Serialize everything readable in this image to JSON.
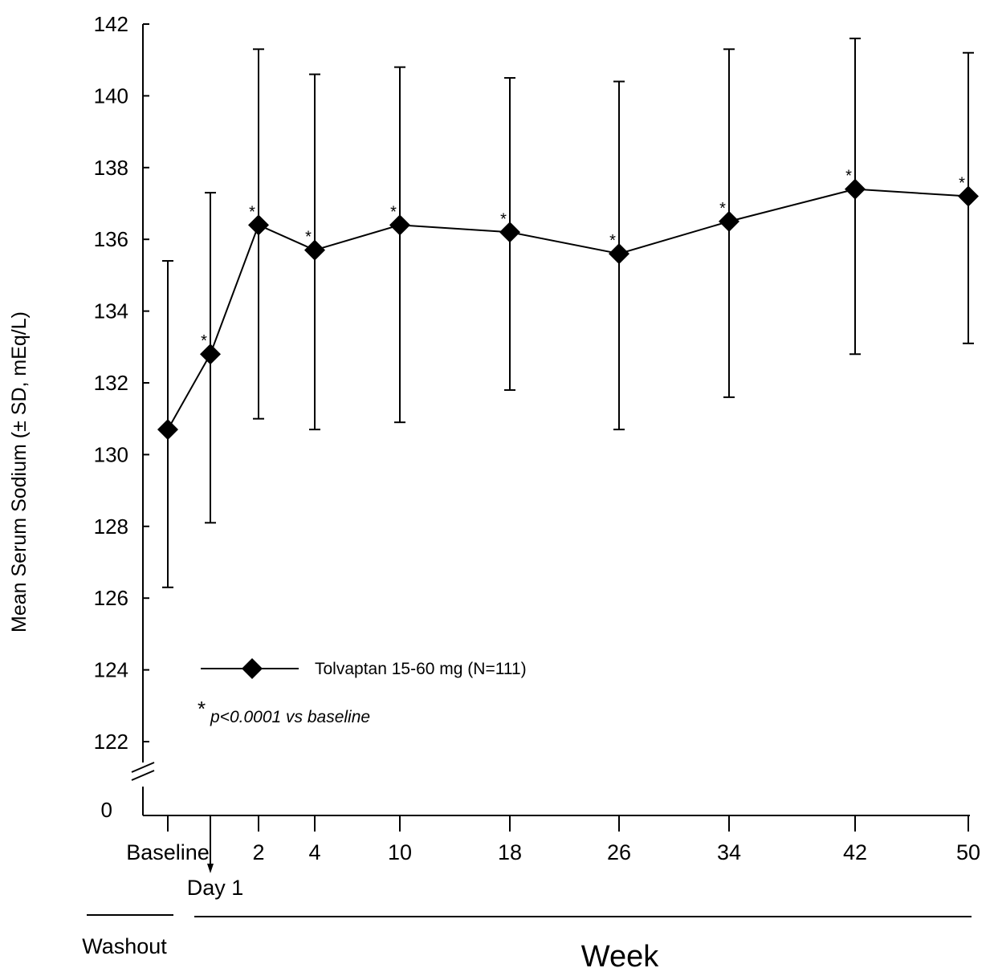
{
  "chart_data": {
    "type": "line",
    "title": "",
    "ylabel": "Mean Serum Sodium (± SD, mEq/L)",
    "xlabel": "Week",
    "period_labels": {
      "washout": "Washout",
      "week": "Week"
    },
    "ylim": [
      122,
      142
    ],
    "y_break_label": "0",
    "y_ticks": [
      "122",
      "124",
      "126",
      "128",
      "130",
      "132",
      "134",
      "136",
      "138",
      "140",
      "142"
    ],
    "categories": [
      "Baseline",
      "Day 1",
      "2",
      "4",
      "10",
      "18",
      "26",
      "34",
      "42",
      "50"
    ],
    "x_tick_labels": [
      "Baseline",
      "2",
      "4",
      "10",
      "18",
      "26",
      "34",
      "42",
      "50"
    ],
    "day1_label": "Day 1",
    "series": [
      {
        "name": "Tolvaptan 15-60 mg (N=111)",
        "values": [
          130.7,
          132.8,
          136.4,
          135.7,
          136.4,
          136.2,
          135.6,
          136.5,
          137.4,
          137.2
        ],
        "sd_upper": [
          135.4,
          137.3,
          141.3,
          140.6,
          140.8,
          140.5,
          140.4,
          141.3,
          141.6,
          141.2
        ],
        "sd_lower": [
          126.3,
          128.1,
          131.0,
          130.7,
          130.9,
          131.8,
          130.7,
          131.6,
          132.8,
          133.1
        ],
        "significant": [
          false,
          true,
          true,
          true,
          true,
          true,
          true,
          true,
          true,
          true
        ],
        "color": "#000000",
        "marker": "diamond"
      }
    ],
    "significance_marker": "*",
    "footnote_star": "*",
    "footnote_text": "p<0.0001 vs baseline",
    "legend_position": "lower-left",
    "grid": false
  }
}
